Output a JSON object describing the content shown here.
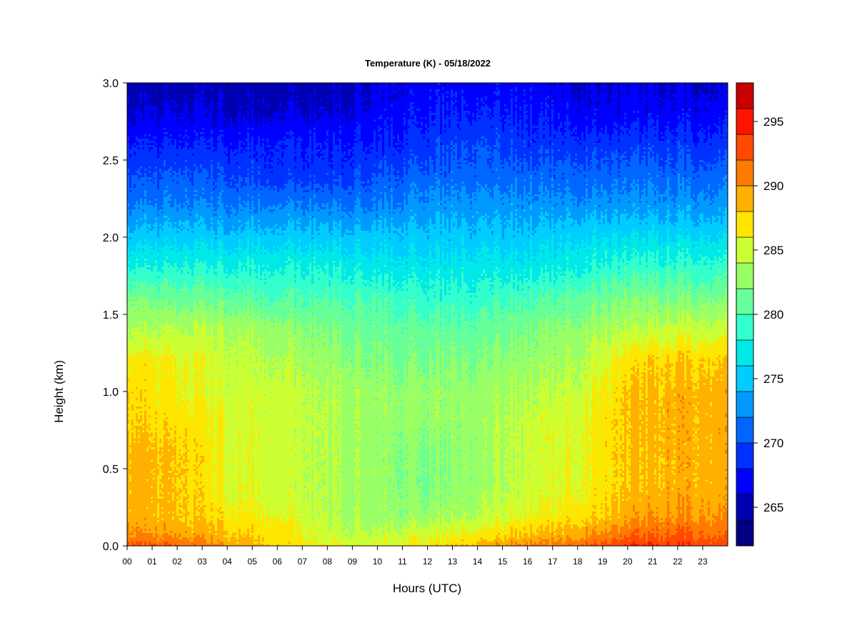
{
  "chart_data": {
    "type": "heatmap",
    "title": "Temperature (K) - 05/18/2022",
    "xlabel": "Hours (UTC)",
    "ylabel": "Height (km)",
    "x_unit": "hours UTC",
    "xlim": [
      0,
      24
    ],
    "ylim": [
      0.0,
      3.0
    ],
    "x_ticks": [
      "00",
      "01",
      "02",
      "03",
      "04",
      "05",
      "06",
      "07",
      "08",
      "09",
      "10",
      "11",
      "12",
      "13",
      "14",
      "15",
      "16",
      "17",
      "18",
      "19",
      "20",
      "21",
      "22",
      "23"
    ],
    "y_ticks": [
      "0.0",
      "0.5",
      "1.0",
      "1.5",
      "2.0",
      "2.5",
      "3.0"
    ],
    "colorbar": {
      "range": [
        262,
        298
      ],
      "levels": [
        262,
        264,
        266,
        268,
        270,
        272,
        274,
        276,
        278,
        280,
        282,
        284,
        286,
        288,
        290,
        292,
        294,
        296,
        298
      ],
      "colors": [
        "#000080",
        "#0000b0",
        "#0000ff",
        "#0032ff",
        "#0066ff",
        "#009aff",
        "#00ccff",
        "#00e8e8",
        "#33ffcc",
        "#66ff99",
        "#99ff66",
        "#ccff33",
        "#ffe600",
        "#ffb000",
        "#ff7a00",
        "#ff4a00",
        "#ff1400",
        "#c80000",
        "#800000"
      ],
      "ticks": [
        "265",
        "270",
        "275",
        "280",
        "285",
        "290",
        "295"
      ],
      "tick_values": [
        265,
        270,
        275,
        280,
        285,
        290,
        295
      ]
    },
    "heights_km": [
      0.0,
      0.05,
      0.1,
      0.2,
      0.4,
      0.6,
      0.8,
      1.0,
      1.2,
      1.4,
      1.6,
      1.8,
      2.0,
      2.2,
      2.4,
      2.6,
      2.8,
      3.0
    ],
    "profiles": [
      {
        "hour": 0,
        "temps": [
          293,
          291,
          290,
          289,
          289,
          289,
          288,
          288,
          287,
          284,
          282,
          278,
          275,
          272,
          270,
          268,
          266,
          265
        ]
      },
      {
        "hour": 2,
        "temps": [
          292,
          290,
          289,
          288,
          288,
          288,
          287,
          286,
          286,
          284,
          281,
          278,
          275,
          272,
          270,
          268,
          266,
          265
        ]
      },
      {
        "hour": 4,
        "temps": [
          290,
          289,
          288,
          287,
          286,
          286,
          286,
          285,
          285,
          284,
          281,
          278,
          275,
          272,
          270,
          268,
          266,
          265
        ]
      },
      {
        "hour": 6,
        "temps": [
          288,
          287,
          287,
          286,
          285,
          285,
          285,
          285,
          284,
          283,
          280,
          278,
          275,
          272,
          269,
          268,
          266,
          265
        ]
      },
      {
        "hour": 8,
        "temps": [
          286,
          285,
          285,
          284,
          284,
          284,
          284,
          284,
          283,
          282,
          280,
          278,
          275,
          272,
          269,
          268,
          266,
          265
        ]
      },
      {
        "hour": 10,
        "temps": [
          285,
          285,
          284,
          283,
          283,
          283,
          283,
          283,
          282,
          281,
          280,
          277,
          275,
          272,
          270,
          268,
          267,
          266
        ]
      },
      {
        "hour": 12,
        "temps": [
          287,
          286,
          285,
          283,
          282,
          282,
          283,
          283,
          282,
          281,
          279,
          277,
          275,
          273,
          271,
          269,
          268,
          267
        ]
      },
      {
        "hour": 14,
        "temps": [
          289,
          287,
          286,
          284,
          283,
          283,
          283,
          283,
          282,
          281,
          279,
          277,
          275,
          273,
          271,
          270,
          268,
          267
        ]
      },
      {
        "hour": 16,
        "temps": [
          291,
          289,
          288,
          286,
          285,
          285,
          285,
          284,
          283,
          282,
          280,
          277,
          275,
          273,
          271,
          269,
          268,
          267
        ]
      },
      {
        "hour": 18,
        "temps": [
          292,
          290,
          289,
          287,
          286,
          286,
          286,
          285,
          284,
          283,
          281,
          278,
          276,
          273,
          271,
          269,
          267,
          266
        ]
      },
      {
        "hour": 20,
        "temps": [
          294,
          292,
          291,
          289,
          288,
          288,
          288,
          288,
          287,
          284,
          282,
          279,
          276,
          273,
          271,
          269,
          267,
          266
        ]
      },
      {
        "hour": 22,
        "temps": [
          294,
          293,
          292,
          290,
          289,
          289,
          289,
          289,
          288,
          285,
          282,
          279,
          276,
          273,
          271,
          269,
          267,
          266
        ]
      },
      {
        "hour": 24,
        "temps": [
          293,
          292,
          291,
          290,
          289,
          289,
          289,
          289,
          288,
          285,
          282,
          279,
          276,
          273,
          271,
          269,
          267,
          266
        ]
      }
    ]
  }
}
